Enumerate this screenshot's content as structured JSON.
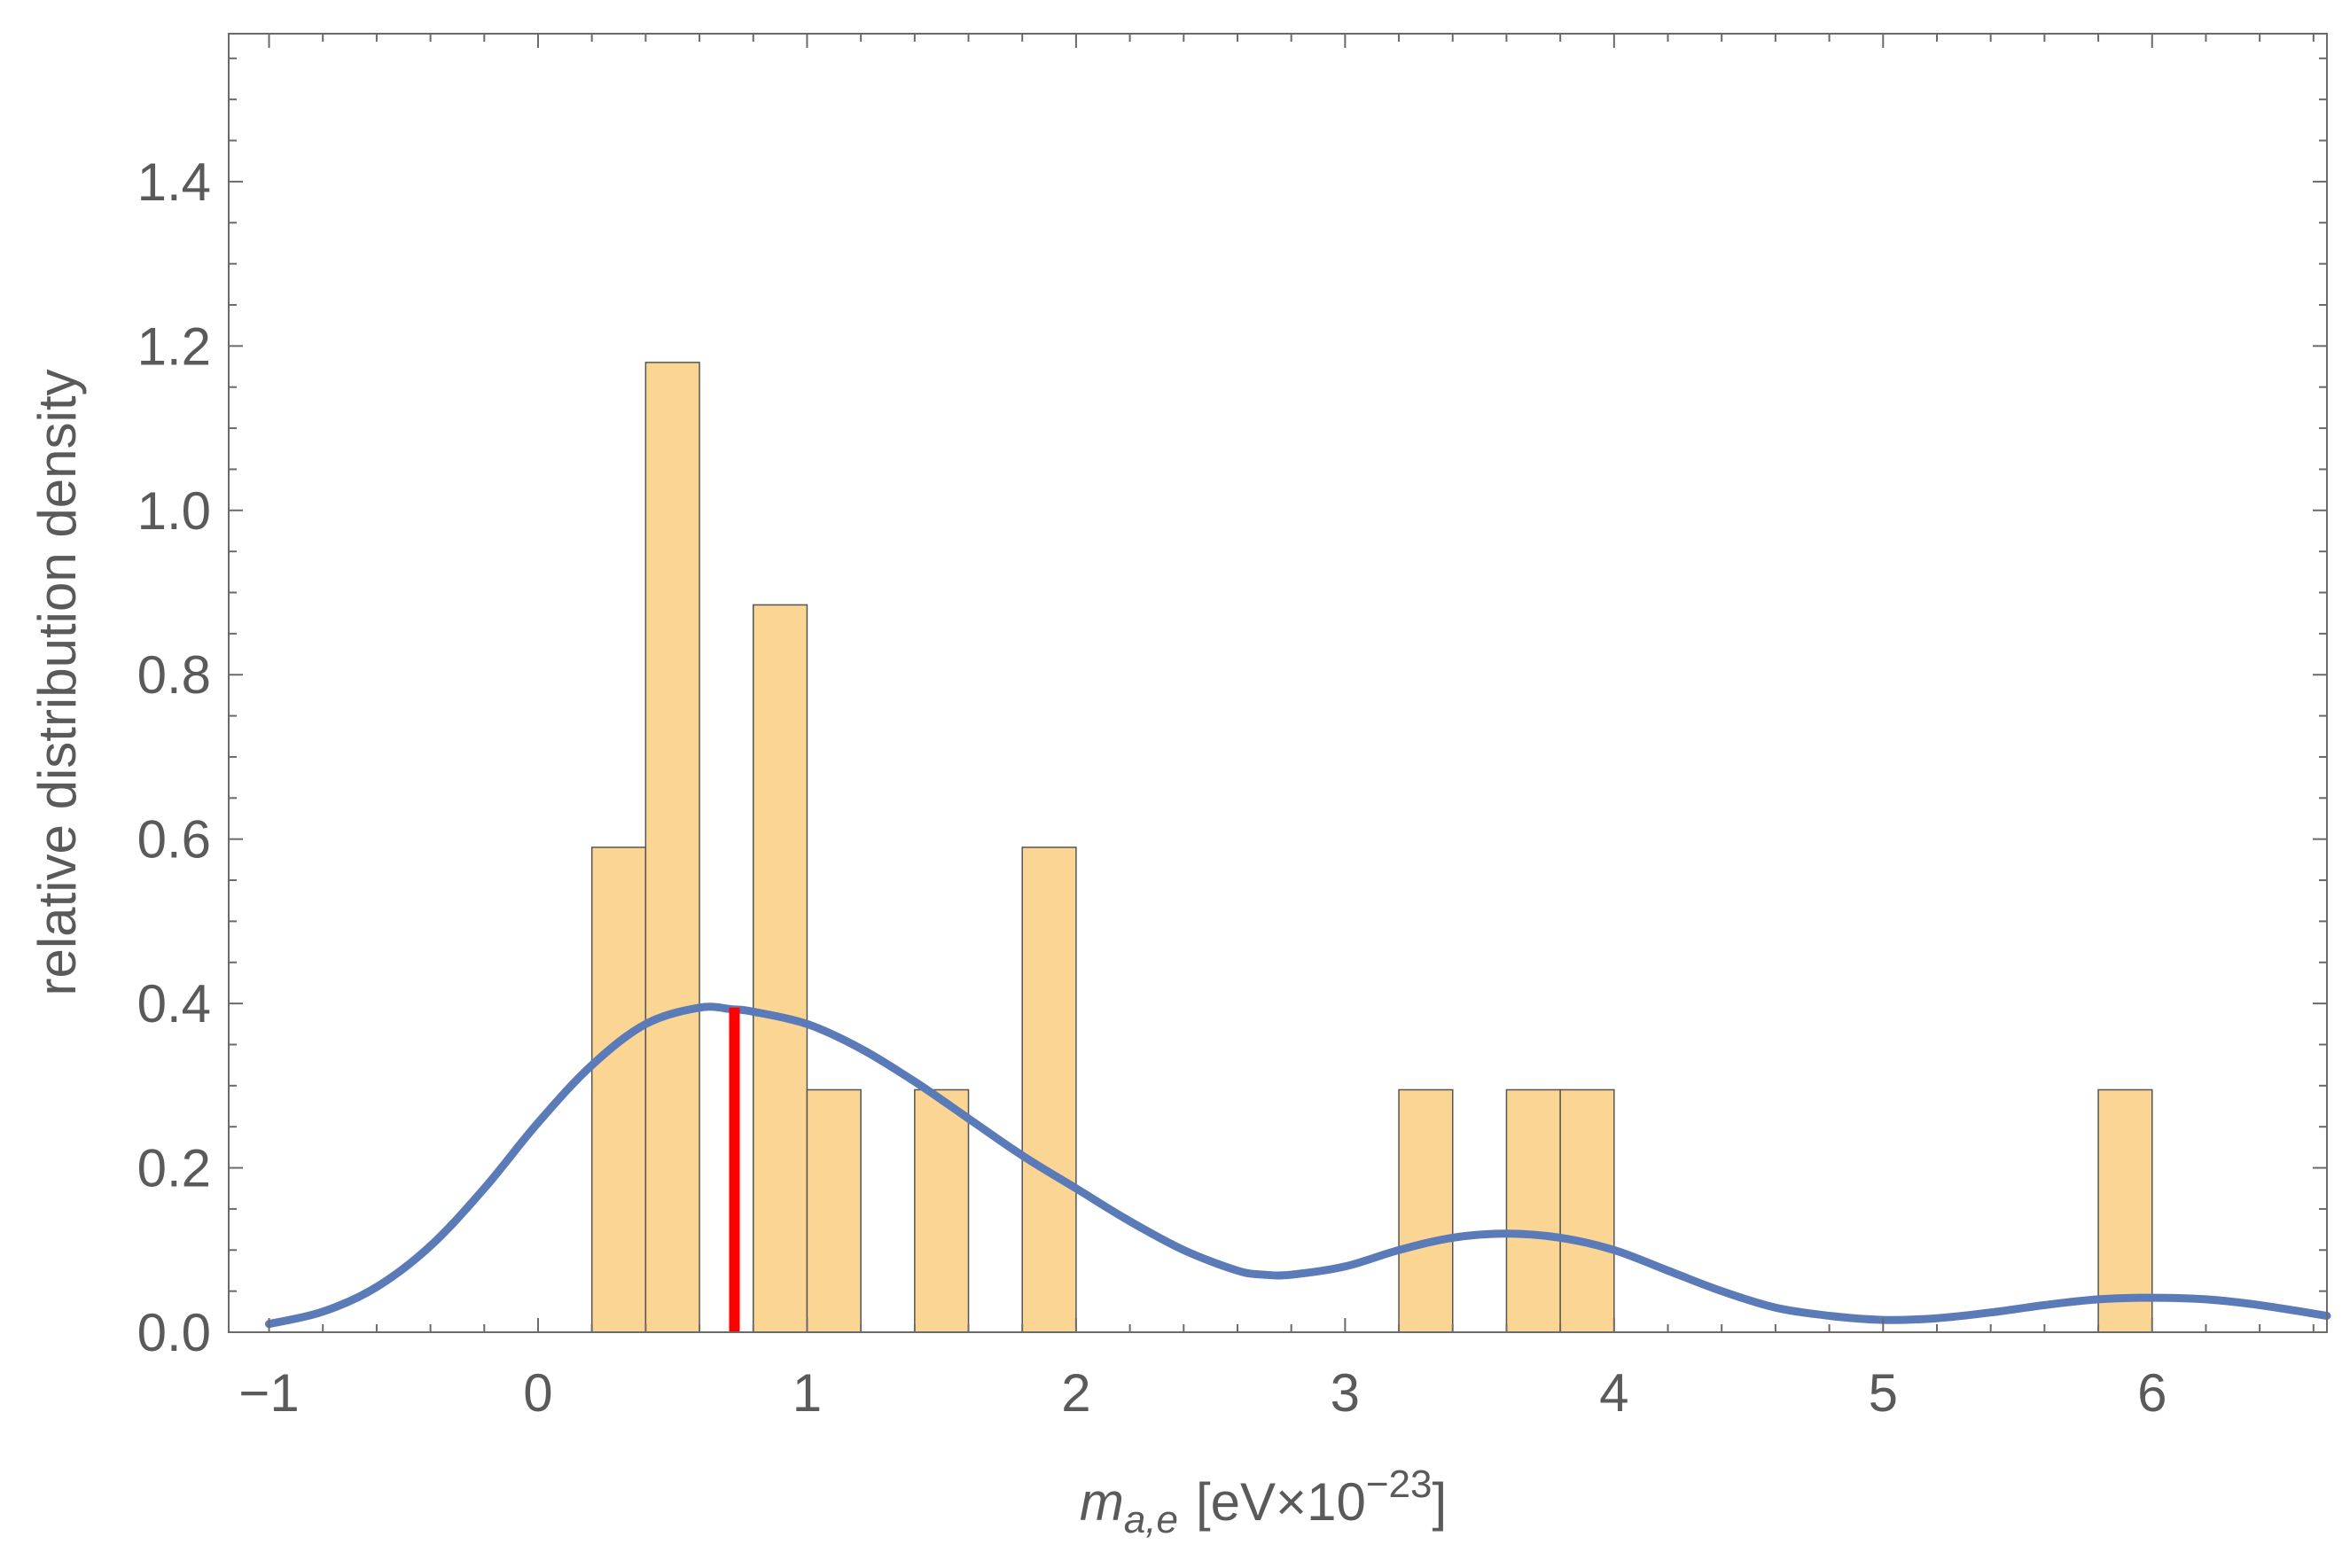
{
  "chart_data": {
    "type": "histogram",
    "xlabel": {
      "symbol": "m",
      "subscript": "a,e",
      "unit_prefix": "[eV×10",
      "superscript": "−23",
      "unit_suffix": "]"
    },
    "ylabel": "relative distribution density",
    "xlim": [
      -1.15,
      6.65
    ],
    "ylim": [
      0,
      1.58
    ],
    "x_ticks": [
      -1,
      0,
      1,
      2,
      3,
      4,
      5,
      6
    ],
    "x_tick_labels": [
      "−1",
      "0",
      "1",
      "2",
      "3",
      "4",
      "5",
      "6"
    ],
    "y_ticks": [
      0.0,
      0.2,
      0.4,
      0.6,
      0.8,
      1.0,
      1.2,
      1.4
    ],
    "y_tick_labels": [
      "0.0",
      "0.2",
      "0.4",
      "0.6",
      "0.8",
      "1.0",
      "1.2",
      "1.4"
    ],
    "bin_width": 0.2,
    "bins": [
      {
        "start": 0.2,
        "end": 0.4,
        "value": 0.59
      },
      {
        "start": 0.4,
        "end": 0.6,
        "value": 1.18
      },
      {
        "start": 0.8,
        "end": 1.0,
        "value": 0.885
      },
      {
        "start": 1.0,
        "end": 1.2,
        "value": 0.295
      },
      {
        "start": 1.4,
        "end": 1.6,
        "value": 0.295
      },
      {
        "start": 1.8,
        "end": 2.0,
        "value": 0.59
      },
      {
        "start": 3.2,
        "end": 3.4,
        "value": 0.295
      },
      {
        "start": 3.6,
        "end": 3.8,
        "value": 0.295
      },
      {
        "start": 3.8,
        "end": 4.0,
        "value": 0.295
      },
      {
        "start": 5.8,
        "end": 6.0,
        "value": 0.295
      }
    ],
    "density_curve": {
      "x": [
        -1.0,
        -0.8,
        -0.6,
        -0.4,
        -0.2,
        0.0,
        0.2,
        0.4,
        0.6,
        0.72,
        0.8,
        1.0,
        1.2,
        1.4,
        1.6,
        1.8,
        2.0,
        2.2,
        2.4,
        2.6,
        2.7,
        2.8,
        3.0,
        3.2,
        3.4,
        3.6,
        3.8,
        4.0,
        4.2,
        4.4,
        4.6,
        4.8,
        5.0,
        5.2,
        5.4,
        5.6,
        5.8,
        6.0,
        6.2,
        6.4,
        6.65
      ],
      "y": [
        0.01,
        0.025,
        0.055,
        0.105,
        0.175,
        0.255,
        0.325,
        0.375,
        0.395,
        0.393,
        0.39,
        0.375,
        0.345,
        0.305,
        0.26,
        0.215,
        0.175,
        0.135,
        0.1,
        0.075,
        0.07,
        0.07,
        0.08,
        0.1,
        0.115,
        0.12,
        0.115,
        0.1,
        0.075,
        0.05,
        0.03,
        0.02,
        0.015,
        0.017,
        0.024,
        0.033,
        0.04,
        0.042,
        0.04,
        0.033,
        0.02
      ]
    },
    "marker": {
      "x": 0.73,
      "y": 0.395
    },
    "colors": {
      "bar_fill": "#fbd593",
      "bar_stroke": "#555555",
      "curve": "#5b7bb8",
      "marker": "#ff0000",
      "frame": "#6a6a6a",
      "text": "#5a5a5a"
    },
    "frame": "full",
    "grid": false,
    "legend": "none"
  }
}
